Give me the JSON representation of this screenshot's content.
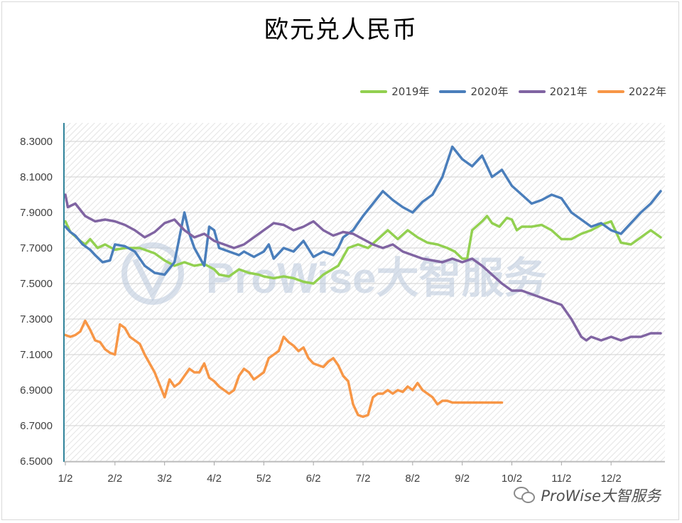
{
  "chart_data": {
    "type": "line",
    "title": "欧元兑人民币",
    "xlabel": "",
    "ylabel": "",
    "ylim": [
      6.5,
      8.3
    ],
    "y_ticks": [
      "6.5000",
      "6.7000",
      "6.9000",
      "7.1000",
      "7.3000",
      "7.5000",
      "7.7000",
      "7.9000",
      "8.1000",
      "8.3000"
    ],
    "x_ticks": [
      "1/2",
      "2/2",
      "3/2",
      "4/2",
      "5/2",
      "6/2",
      "7/2",
      "8/2",
      "9/2",
      "10/2",
      "11/2",
      "12/2"
    ],
    "x_domain": [
      0,
      12
    ],
    "legend_position": "top-right",
    "grid": true,
    "series": [
      {
        "name": "2019年",
        "color": "#92d050",
        "x": [
          0.0,
          0.1,
          0.3,
          0.4,
          0.5,
          0.65,
          0.8,
          1.0,
          1.2,
          1.5,
          1.8,
          2.0,
          2.2,
          2.4,
          2.6,
          2.8,
          3.0,
          3.1,
          3.3,
          3.5,
          3.7,
          3.9,
          4.0,
          4.2,
          4.4,
          4.6,
          4.8,
          5.0,
          5.2,
          5.5,
          5.7,
          5.9,
          6.1,
          6.3,
          6.5,
          6.7,
          6.9,
          7.1,
          7.3,
          7.5,
          7.7,
          7.85,
          8.0,
          8.1,
          8.2,
          8.4,
          8.5,
          8.6,
          8.75,
          8.9,
          9.0,
          9.1,
          9.2,
          9.4,
          9.6,
          9.8,
          10.0,
          10.2,
          10.4,
          10.6,
          10.8,
          11.0,
          11.2,
          11.4,
          11.6,
          11.8,
          12.0
        ],
        "values": [
          7.85,
          7.79,
          7.74,
          7.72,
          7.75,
          7.7,
          7.72,
          7.69,
          7.7,
          7.7,
          7.67,
          7.63,
          7.6,
          7.62,
          7.6,
          7.61,
          7.58,
          7.55,
          7.54,
          7.58,
          7.56,
          7.55,
          7.54,
          7.53,
          7.54,
          7.53,
          7.51,
          7.5,
          7.55,
          7.6,
          7.7,
          7.72,
          7.7,
          7.75,
          7.8,
          7.75,
          7.8,
          7.76,
          7.73,
          7.72,
          7.7,
          7.68,
          7.64,
          7.64,
          7.8,
          7.85,
          7.88,
          7.84,
          7.82,
          7.87,
          7.86,
          7.8,
          7.82,
          7.82,
          7.83,
          7.8,
          7.75,
          7.75,
          7.78,
          7.8,
          7.83,
          7.85,
          7.73,
          7.72,
          7.76,
          7.8,
          7.76
        ]
      },
      {
        "name": "2020年",
        "color": "#4a7ebb",
        "x": [
          0.0,
          0.1,
          0.2,
          0.35,
          0.5,
          0.6,
          0.75,
          0.9,
          1.0,
          1.2,
          1.4,
          1.6,
          1.8,
          2.0,
          2.2,
          2.4,
          2.5,
          2.6,
          2.8,
          2.9,
          3.0,
          3.1,
          3.3,
          3.5,
          3.6,
          3.8,
          4.0,
          4.1,
          4.2,
          4.4,
          4.6,
          4.8,
          5.0,
          5.2,
          5.4,
          5.5,
          5.6,
          5.8,
          6.0,
          6.2,
          6.4,
          6.6,
          6.8,
          7.0,
          7.2,
          7.4,
          7.6,
          7.8,
          8.0,
          8.2,
          8.4,
          8.6,
          8.8,
          9.0,
          9.2,
          9.4,
          9.6,
          9.8,
          10.0,
          10.2,
          10.4,
          10.6,
          10.8,
          11.0,
          11.2,
          11.4,
          11.6,
          11.8,
          12.0
        ],
        "values": [
          7.82,
          7.79,
          7.77,
          7.72,
          7.69,
          7.66,
          7.62,
          7.63,
          7.72,
          7.71,
          7.68,
          7.6,
          7.56,
          7.55,
          7.62,
          7.9,
          7.78,
          7.7,
          7.6,
          7.82,
          7.8,
          7.7,
          7.68,
          7.66,
          7.68,
          7.65,
          7.68,
          7.72,
          7.64,
          7.7,
          7.68,
          7.74,
          7.65,
          7.68,
          7.66,
          7.7,
          7.76,
          7.8,
          7.88,
          7.95,
          8.02,
          7.97,
          7.93,
          7.9,
          7.96,
          8.0,
          8.1,
          8.27,
          8.2,
          8.16,
          8.22,
          8.1,
          8.14,
          8.05,
          8.0,
          7.95,
          7.97,
          8.0,
          7.98,
          7.9,
          7.86,
          7.82,
          7.84,
          7.8,
          7.78,
          7.84,
          7.9,
          7.95,
          8.02
        ]
      },
      {
        "name": "2021年",
        "color": "#8064a2",
        "x": [
          0.0,
          0.05,
          0.2,
          0.4,
          0.6,
          0.8,
          1.0,
          1.2,
          1.4,
          1.6,
          1.8,
          2.0,
          2.2,
          2.4,
          2.6,
          2.8,
          3.0,
          3.2,
          3.4,
          3.6,
          3.8,
          4.0,
          4.2,
          4.4,
          4.6,
          4.8,
          5.0,
          5.2,
          5.4,
          5.6,
          5.8,
          6.0,
          6.2,
          6.4,
          6.6,
          6.8,
          7.0,
          7.2,
          7.4,
          7.6,
          7.8,
          8.0,
          8.2,
          8.4,
          8.6,
          8.8,
          9.0,
          9.2,
          9.4,
          9.6,
          9.8,
          10.0,
          10.2,
          10.4,
          10.5,
          10.6,
          10.8,
          11.0,
          11.2,
          11.4,
          11.6,
          11.8,
          12.0
        ],
        "values": [
          8.0,
          7.93,
          7.95,
          7.88,
          7.85,
          7.86,
          7.85,
          7.83,
          7.8,
          7.76,
          7.79,
          7.84,
          7.86,
          7.8,
          7.76,
          7.78,
          7.74,
          7.72,
          7.7,
          7.72,
          7.76,
          7.8,
          7.84,
          7.83,
          7.8,
          7.82,
          7.85,
          7.8,
          7.77,
          7.79,
          7.78,
          7.75,
          7.72,
          7.7,
          7.72,
          7.68,
          7.66,
          7.64,
          7.63,
          7.62,
          7.64,
          7.62,
          7.64,
          7.6,
          7.55,
          7.5,
          7.46,
          7.46,
          7.44,
          7.42,
          7.4,
          7.38,
          7.3,
          7.2,
          7.18,
          7.2,
          7.18,
          7.2,
          7.18,
          7.2,
          7.2,
          7.22,
          7.22
        ]
      },
      {
        "name": "2022年",
        "color": "#f79646",
        "x": [
          0.0,
          0.1,
          0.2,
          0.3,
          0.4,
          0.5,
          0.6,
          0.7,
          0.8,
          0.9,
          1.0,
          1.1,
          1.2,
          1.3,
          1.4,
          1.5,
          1.6,
          1.7,
          1.8,
          1.9,
          2.0,
          2.1,
          2.2,
          2.3,
          2.4,
          2.5,
          2.6,
          2.7,
          2.8,
          2.9,
          3.0,
          3.1,
          3.2,
          3.3,
          3.4,
          3.5,
          3.6,
          3.7,
          3.8,
          3.9,
          4.0,
          4.1,
          4.2,
          4.3,
          4.4,
          4.5,
          4.6,
          4.7,
          4.8,
          4.9,
          5.0,
          5.1,
          5.2,
          5.3,
          5.4,
          5.5,
          5.6,
          5.7,
          5.8,
          5.9,
          6.0,
          6.1,
          6.2,
          6.3,
          6.4,
          6.5,
          6.6,
          6.7,
          6.8,
          6.9,
          7.0,
          7.1,
          7.2,
          7.3,
          7.4,
          7.5,
          7.6,
          7.7,
          7.8,
          7.9,
          8.0,
          8.1,
          8.2,
          8.3,
          8.4,
          8.5,
          8.6,
          8.7,
          8.8
        ],
        "values": [
          7.21,
          7.2,
          7.21,
          7.23,
          7.29,
          7.24,
          7.18,
          7.17,
          7.13,
          7.11,
          7.1,
          7.27,
          7.25,
          7.2,
          7.18,
          7.16,
          7.1,
          7.05,
          7.0,
          6.93,
          6.86,
          6.96,
          6.92,
          6.94,
          6.98,
          7.02,
          7.0,
          7.0,
          7.05,
          6.97,
          6.95,
          6.92,
          6.9,
          6.88,
          6.9,
          6.98,
          7.02,
          7.0,
          6.96,
          6.98,
          7.0,
          7.08,
          7.1,
          7.12,
          7.2,
          7.17,
          7.15,
          7.12,
          7.14,
          7.08,
          7.05,
          7.04,
          7.03,
          7.06,
          7.08,
          7.04,
          6.98,
          6.95,
          6.82,
          6.76,
          6.75,
          6.76,
          6.86,
          6.88,
          6.88,
          6.9,
          6.88,
          6.9,
          6.89,
          6.92,
          6.9,
          6.94,
          6.9,
          6.88,
          6.86,
          6.82,
          6.84,
          6.84,
          6.83,
          6.83,
          6.83,
          6.83,
          6.83,
          6.83,
          6.83,
          6.83,
          6.83,
          6.83,
          6.83
        ]
      }
    ]
  },
  "watermark": {
    "background_text": "ProWise大智服务",
    "footer_text": "ProWise大智服务",
    "footer_icon": "wechat-icon"
  }
}
